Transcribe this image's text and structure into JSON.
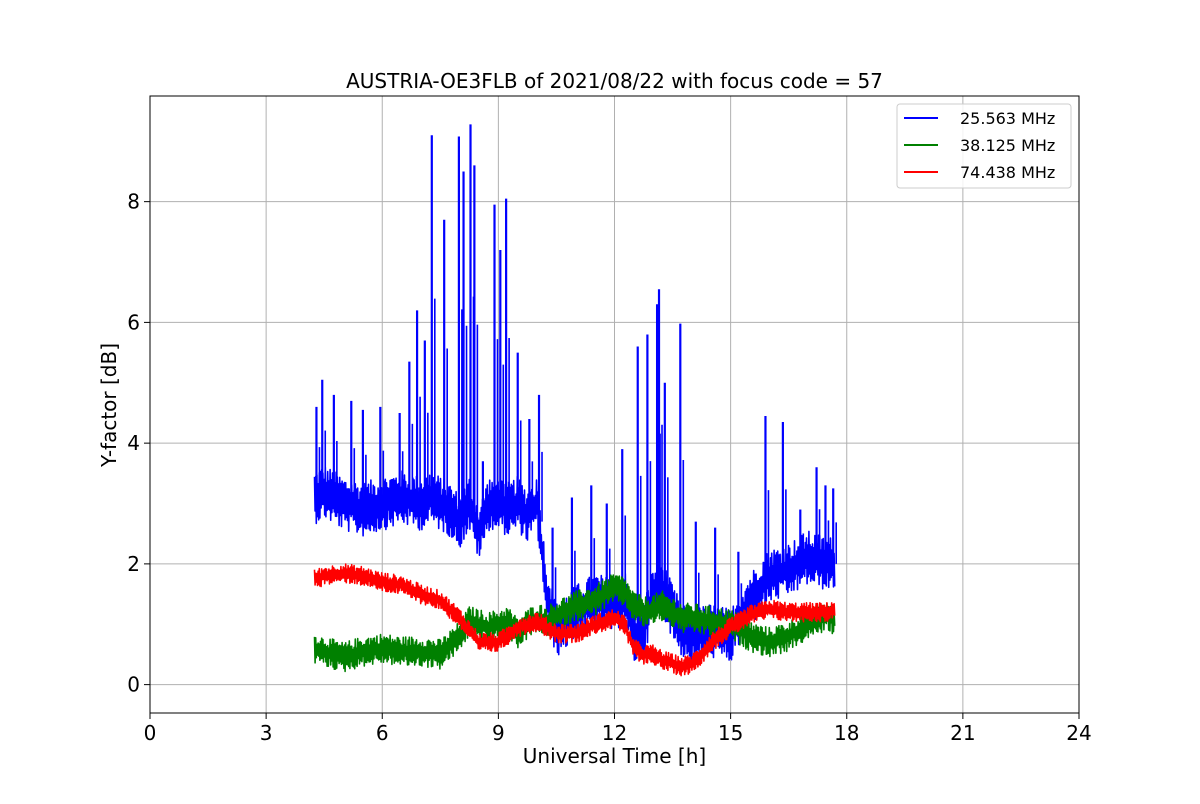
{
  "chart_data": {
    "type": "line",
    "title": "AUSTRIA-OE3FLB of 2021/08/22 with focus code = 57",
    "xlabel": "Universal Time [h]",
    "ylabel": "Y-factor [dB]",
    "xlim": [
      0,
      24
    ],
    "ylim": [
      -0.47,
      9.75
    ],
    "xticks": [
      0,
      3,
      6,
      9,
      12,
      15,
      18,
      21,
      24
    ],
    "xtick_labels": [
      "0",
      "3",
      "6",
      "9",
      "12",
      "15",
      "18",
      "21",
      "24"
    ],
    "yticks": [
      0,
      2,
      4,
      6,
      8
    ],
    "ytick_labels": [
      "0",
      "2",
      "4",
      "6",
      "8"
    ],
    "grid": true,
    "legend_position": "top-right",
    "series": [
      {
        "name": "25.563 MHz",
        "color": "#0000ff",
        "x": [
          4.25,
          4.5,
          5.0,
          5.5,
          6.0,
          6.5,
          7.0,
          7.25,
          7.5,
          7.75,
          8.0,
          8.25,
          8.5,
          8.75,
          9.0,
          9.25,
          9.5,
          9.75,
          10.0,
          10.25,
          10.5,
          11.0,
          11.5,
          12.0,
          12.25,
          12.5,
          12.75,
          13.0,
          13.25,
          13.5,
          13.75,
          14.0,
          14.5,
          15.0,
          15.5,
          16.0,
          16.5,
          17.0,
          17.5,
          17.7
        ],
        "y": [
          3.1,
          3.2,
          3.0,
          2.9,
          3.0,
          3.1,
          3.0,
          3.1,
          3.0,
          2.9,
          2.7,
          3.0,
          2.5,
          3.0,
          3.0,
          2.9,
          3.0,
          2.8,
          3.0,
          1.5,
          0.9,
          1.2,
          1.4,
          1.3,
          1.5,
          0.8,
          0.9,
          1.5,
          1.6,
          1.2,
          0.9,
          0.8,
          0.9,
          0.8,
          1.4,
          1.8,
          1.9,
          2.1,
          2.0,
          2.0
        ],
        "spikes": [
          {
            "x": 4.3,
            "y": 4.6
          },
          {
            "x": 4.45,
            "y": 5.05
          },
          {
            "x": 4.75,
            "y": 4.8
          },
          {
            "x": 5.2,
            "y": 4.7
          },
          {
            "x": 5.5,
            "y": 4.55
          },
          {
            "x": 5.95,
            "y": 4.6
          },
          {
            "x": 6.45,
            "y": 4.5
          },
          {
            "x": 6.7,
            "y": 5.35
          },
          {
            "x": 6.9,
            "y": 6.2
          },
          {
            "x": 7.1,
            "y": 5.7
          },
          {
            "x": 7.28,
            "y": 9.1
          },
          {
            "x": 7.6,
            "y": 7.7
          },
          {
            "x": 7.98,
            "y": 9.08
          },
          {
            "x": 8.1,
            "y": 8.5
          },
          {
            "x": 8.28,
            "y": 9.28
          },
          {
            "x": 8.38,
            "y": 8.6
          },
          {
            "x": 8.6,
            "y": 3.7
          },
          {
            "x": 8.9,
            "y": 7.95
          },
          {
            "x": 9.05,
            "y": 7.2
          },
          {
            "x": 9.2,
            "y": 8.05
          },
          {
            "x": 9.5,
            "y": 5.5
          },
          {
            "x": 9.8,
            "y": 4.4
          },
          {
            "x": 10.05,
            "y": 4.8
          },
          {
            "x": 10.4,
            "y": 2.6
          },
          {
            "x": 10.9,
            "y": 3.1
          },
          {
            "x": 11.4,
            "y": 3.3
          },
          {
            "x": 11.8,
            "y": 3.0
          },
          {
            "x": 12.2,
            "y": 3.9
          },
          {
            "x": 12.6,
            "y": 5.6
          },
          {
            "x": 12.85,
            "y": 5.8
          },
          {
            "x": 13.1,
            "y": 6.3
          },
          {
            "x": 13.15,
            "y": 6.55
          },
          {
            "x": 13.3,
            "y": 5.0
          },
          {
            "x": 13.7,
            "y": 5.98
          },
          {
            "x": 14.1,
            "y": 2.7
          },
          {
            "x": 14.6,
            "y": 2.6
          },
          {
            "x": 15.2,
            "y": 2.2
          },
          {
            "x": 15.9,
            "y": 4.45
          },
          {
            "x": 16.35,
            "y": 4.35
          },
          {
            "x": 16.8,
            "y": 2.9
          },
          {
            "x": 17.22,
            "y": 3.6
          },
          {
            "x": 17.45,
            "y": 3.3
          },
          {
            "x": 17.65,
            "y": 3.25
          }
        ],
        "band": 0.45
      },
      {
        "name": "38.125 MHz",
        "color": "#008000",
        "x": [
          4.25,
          4.5,
          5.0,
          5.5,
          6.0,
          6.5,
          7.0,
          7.5,
          8.0,
          8.25,
          8.5,
          8.75,
          9.0,
          9.25,
          9.5,
          9.75,
          10.0,
          10.25,
          10.5,
          11.0,
          11.5,
          12.0,
          12.25,
          12.5,
          12.75,
          13.0,
          13.25,
          13.5,
          13.75,
          14.0,
          14.5,
          15.0,
          15.5,
          16.0,
          16.5,
          17.0,
          17.5,
          17.7
        ],
        "y": [
          0.6,
          0.55,
          0.45,
          0.55,
          0.6,
          0.55,
          0.55,
          0.5,
          0.8,
          1.05,
          1.0,
          0.95,
          1.0,
          1.05,
          0.85,
          1.0,
          1.1,
          1.05,
          1.15,
          1.3,
          1.4,
          1.6,
          1.55,
          1.3,
          1.2,
          1.25,
          1.3,
          1.2,
          1.1,
          1.1,
          1.05,
          1.0,
          0.8,
          0.7,
          0.8,
          1.0,
          1.15,
          1.05
        ],
        "band": 0.25
      },
      {
        "name": "74.438 MHz",
        "color": "#ff0000",
        "x": [
          4.25,
          4.5,
          5.0,
          5.5,
          6.0,
          6.5,
          7.0,
          7.5,
          8.0,
          8.5,
          9.0,
          9.5,
          10.0,
          10.5,
          11.0,
          11.5,
          12.0,
          12.25,
          12.5,
          12.75,
          13.0,
          13.25,
          13.5,
          13.75,
          14.0,
          14.25,
          14.5,
          15.0,
          15.5,
          16.0,
          16.5,
          17.0,
          17.5,
          17.7
        ],
        "y": [
          1.75,
          1.8,
          1.85,
          1.8,
          1.7,
          1.65,
          1.5,
          1.4,
          1.1,
          0.7,
          0.7,
          0.95,
          1.05,
          0.85,
          0.85,
          1.0,
          1.1,
          1.0,
          0.6,
          0.5,
          0.5,
          0.4,
          0.35,
          0.3,
          0.35,
          0.5,
          0.7,
          0.95,
          1.15,
          1.25,
          1.2,
          1.2,
          1.2,
          1.25
        ],
        "band": 0.16
      }
    ]
  }
}
